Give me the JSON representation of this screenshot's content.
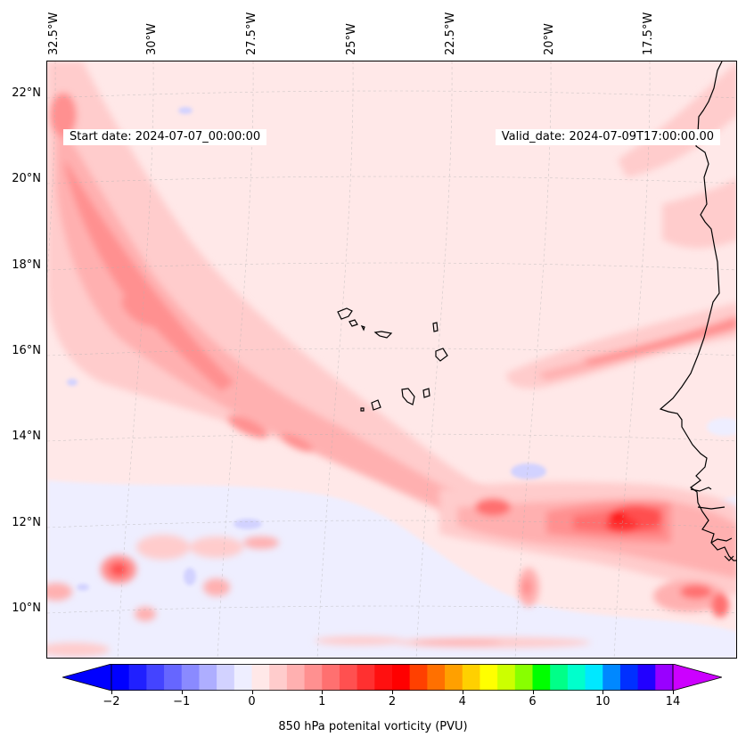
{
  "map": {
    "start_date": "Start date: 2024-07-07_00:00:00",
    "valid_date": "Valid_date: 2024-07-09T17:00:00.00",
    "lon_labels": [
      "32.5°W",
      "30°W",
      "27.5°W",
      "25°W",
      "22.5°W",
      "20°W",
      "17.5°W"
    ],
    "lat_labels": [
      "22°N",
      "20°N",
      "18°N",
      "16°N",
      "14°N",
      "12°N",
      "10°N"
    ]
  },
  "colorbar": {
    "title": "850 hPa potenital vorticity (PVU)",
    "tick_labels": [
      "−2",
      "−1",
      "0",
      "1",
      "2",
      "4",
      "6",
      "10",
      "14"
    ],
    "colors": [
      "#0000ff",
      "#2020ff",
      "#4444ff",
      "#6666ff",
      "#8a8aff",
      "#aeaeff",
      "#d2d2ff",
      "#eeeeff",
      "#ffe8e8",
      "#ffcccc",
      "#ffb0b0",
      "#ff9090",
      "#ff7070",
      "#ff5050",
      "#ff3030",
      "#ff1010",
      "#ff0000",
      "#ff4000",
      "#ff7000",
      "#ffa000",
      "#ffd000",
      "#ffff00",
      "#ccff00",
      "#88ff00",
      "#00ff00",
      "#00ff88",
      "#00ffcc",
      "#00e8ff",
      "#0088ff",
      "#0030ff",
      "#2200ff",
      "#9900ff"
    ],
    "low_extend_color": "#0000ff",
    "high_extend_color": "#cc00ff"
  }
}
